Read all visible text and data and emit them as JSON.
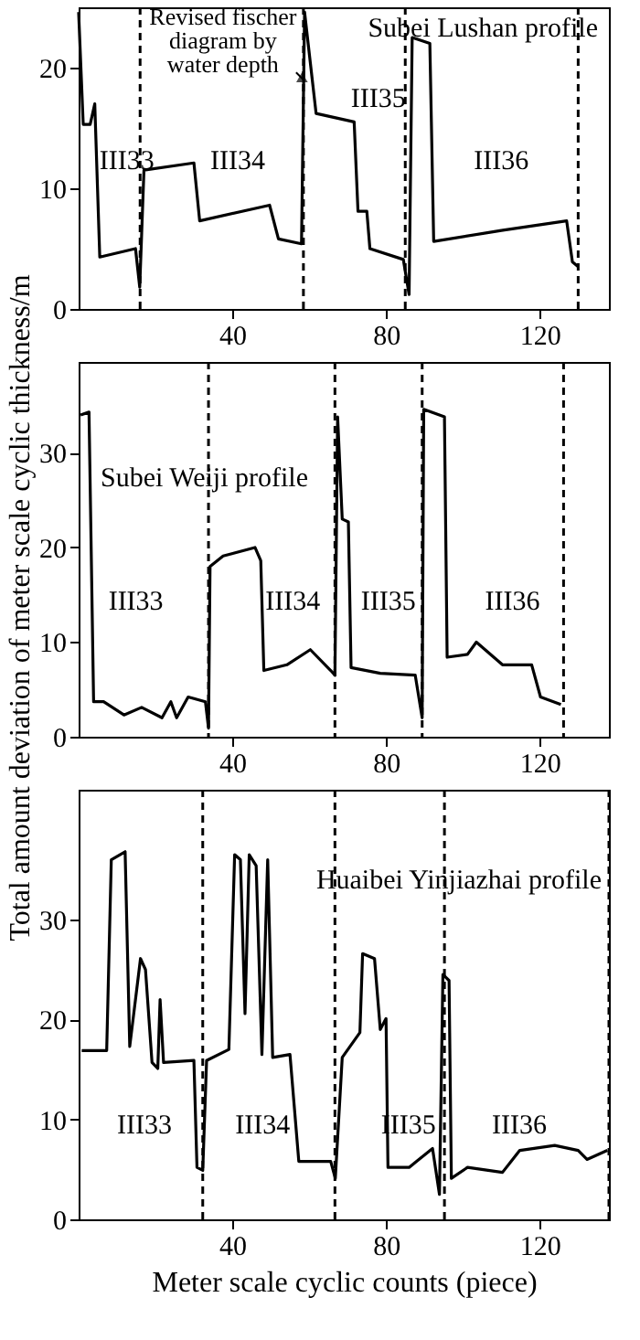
{
  "chart_data": [
    {
      "type": "line",
      "title": "Subei Lushan profile",
      "x": [
        0,
        1.2,
        3,
        4.2,
        5.5,
        14.8,
        15.9,
        17,
        30,
        31.5,
        49.7,
        52,
        58,
        58.8,
        60.3,
        61.8,
        71.7,
        72.7,
        75,
        75.8,
        84.5,
        86,
        86.8,
        91.4,
        92.4,
        110,
        127,
        128.5,
        130
      ],
      "series": [
        {
          "color": "#000000",
          "values": [
            24.6,
            15.3,
            15.3,
            17,
            4.3,
            5,
            1.8,
            11.5,
            12.1,
            7.3,
            8.6,
            5.8,
            5.4,
            24.6,
            20.4,
            16.2,
            15.5,
            8.1,
            8.1,
            5,
            4.1,
            1.2,
            22.5,
            22,
            5.6,
            6.5,
            7.3,
            3.9,
            3.5
          ]
        }
      ],
      "xlim": [
        0,
        138
      ],
      "ylim": [
        0,
        25
      ],
      "xticks": [
        40,
        80,
        120
      ],
      "yticks": [
        0,
        10,
        20
      ],
      "ref_lines": [
        {
          "axis": "x",
          "value": 16,
          "color": "#000000",
          "line_style": "dashed"
        },
        {
          "axis": "x",
          "value": 58.5,
          "color": "#000000",
          "line_style": "dashed"
        },
        {
          "axis": "x",
          "value": 85,
          "color": "#000000",
          "line_style": "dashed"
        },
        {
          "axis": "x",
          "value": 130,
          "color": "#000000",
          "line_style": "dashed"
        }
      ],
      "annotations": [
        "III33",
        "III34",
        "III35",
        "III36",
        {
          "text": "Revised fischer diagram by water depth",
          "x": 58.5,
          "y": 19
        }
      ]
    },
    {
      "type": "line",
      "title": "Subei Weiji profile",
      "ylabel": "Total amount deviation of meter scale cyclic thickness/m",
      "x": [
        0.5,
        2.7,
        3.9,
        6.5,
        11.8,
        16.4,
        21.7,
        24,
        25.5,
        28.5,
        33,
        33.8,
        34.2,
        37.6,
        45.9,
        47.4,
        48.2,
        54.2,
        60.3,
        65.6,
        66.7,
        67.4,
        68.6,
        70.2,
        70.9,
        78.5,
        87.6,
        89.4,
        89.8,
        95.2,
        95.9,
        101.2,
        103.5,
        110.3,
        117.9,
        120.2,
        125.5
      ],
      "series": [
        {
          "color": "#000000",
          "values": [
            34,
            34.3,
            3.7,
            3.7,
            2.3,
            3.1,
            2,
            3.7,
            2,
            4.2,
            3.7,
            0.9,
            18,
            19.1,
            20,
            18.6,
            7,
            7.6,
            9.2,
            7,
            6.5,
            33.8,
            23,
            22.7,
            7.3,
            6.7,
            6.5,
            2,
            34.6,
            33.8,
            8.4,
            8.7,
            10,
            7.6,
            7.6,
            4.2,
            3.4
          ]
        }
      ],
      "xlim": [
        0,
        138
      ],
      "ylim": [
        0,
        39.6
      ],
      "xticks": [
        40,
        80,
        120
      ],
      "yticks": [
        0,
        10,
        20,
        30
      ],
      "ref_lines": [
        {
          "axis": "x",
          "value": 33.8,
          "color": "#000000",
          "line_style": "dashed"
        },
        {
          "axis": "x",
          "value": 66.7,
          "color": "#000000",
          "line_style": "dashed"
        },
        {
          "axis": "x",
          "value": 89.4,
          "color": "#000000",
          "line_style": "dashed"
        },
        {
          "axis": "x",
          "value": 126.2,
          "color": "#000000",
          "line_style": "dashed"
        }
      ],
      "annotations": [
        "III33",
        "III34",
        "III35",
        "III36"
      ]
    },
    {
      "type": "line",
      "title": "Huaibei Yinjiazhai profile",
      "xlabel": "Meter scale cyclic counts (piece)",
      "x": [
        0.8,
        7.3,
        8.5,
        12.1,
        13.3,
        16.1,
        17.4,
        19.1,
        20.6,
        21.2,
        22.1,
        30,
        30.8,
        32.3,
        33.3,
        39.1,
        40.6,
        42.1,
        43.3,
        44.4,
        46.2,
        47.7,
        49.2,
        50.5,
        55,
        57.3,
        65.6,
        66.8,
        68.6,
        73.2,
        73.9,
        77,
        78.5,
        80,
        80.5,
        86,
        92.1,
        93.9,
        94.8,
        96.4,
        97,
        101.2,
        110.3,
        114.8,
        123.9,
        130,
        132.3,
        137.6
      ],
      "series": [
        {
          "color": "#000000",
          "values": [
            16.9,
            16.9,
            36,
            36.8,
            17.3,
            26.1,
            25,
            15.7,
            15.1,
            22,
            15.7,
            15.9,
            5.2,
            4.9,
            15.9,
            17,
            36.5,
            36,
            20.6,
            36.5,
            35.4,
            16.5,
            36,
            16.2,
            16.5,
            5.8,
            5.8,
            4.1,
            16.2,
            18.7,
            26.6,
            26.1,
            19,
            20.1,
            5.2,
            5.2,
            7.1,
            2.5,
            24.5,
            23.9,
            4.1,
            5.2,
            4.7,
            6.9,
            7.4,
            6.9,
            6,
            6.9
          ]
        }
      ],
      "xlim": [
        0,
        138
      ],
      "ylim": [
        0,
        43
      ],
      "xticks": [
        40,
        80,
        120
      ],
      "yticks": [
        0,
        10,
        20,
        30
      ],
      "ref_lines": [
        {
          "axis": "x",
          "value": 32.3,
          "color": "#000000",
          "line_style": "dashed"
        },
        {
          "axis": "x",
          "value": 66.7,
          "color": "#000000",
          "line_style": "dashed"
        },
        {
          "axis": "x",
          "value": 95.2,
          "color": "#000000",
          "line_style": "dashed"
        },
        {
          "axis": "x",
          "value": 138,
          "color": "#000000",
          "line_style": "dashed"
        }
      ],
      "annotations": [
        "III33",
        "III34",
        "III35",
        "III36"
      ]
    }
  ]
}
